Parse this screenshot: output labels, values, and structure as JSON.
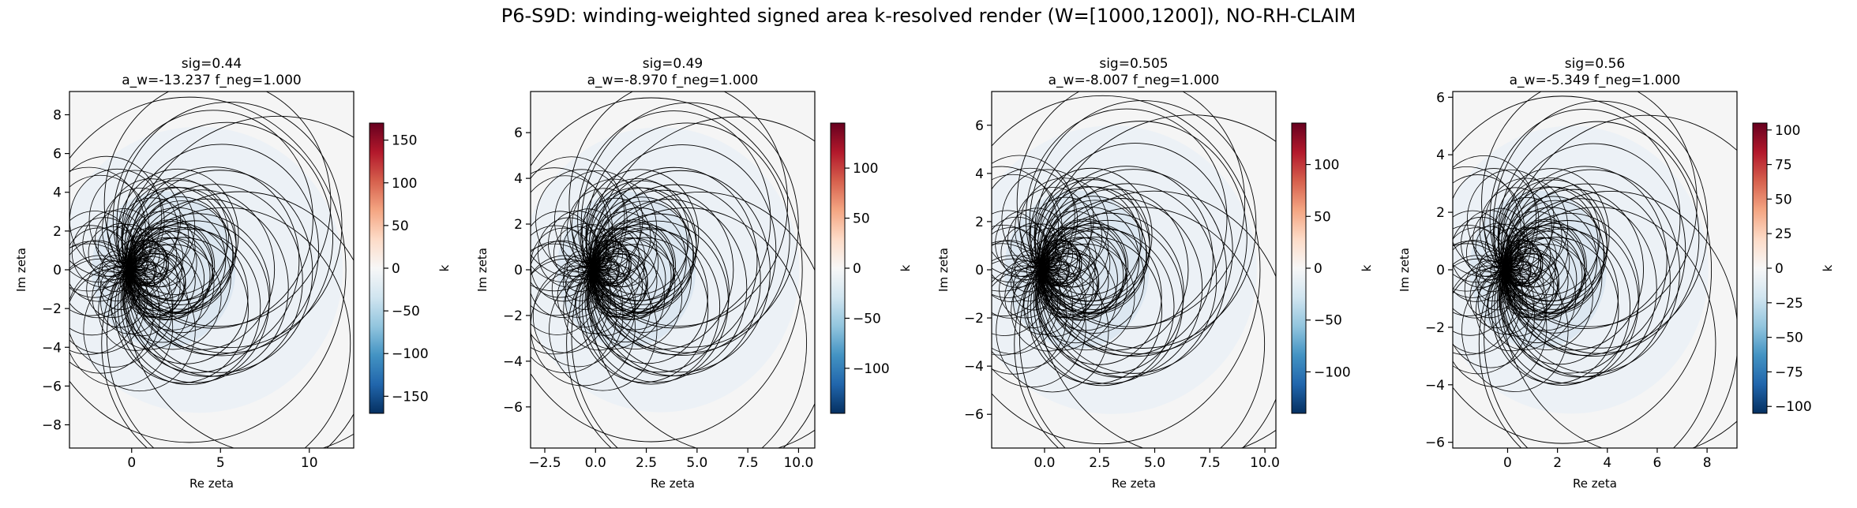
{
  "figure": {
    "title": "P6-S9D: winding-weighted signed area k-resolved render (W=[1000,1200]), NO-RH-CLAIM"
  },
  "colors": {
    "panel_background": "#f5f5f5",
    "curve": "#000000",
    "fill_tint": "#e3edf5",
    "colormap": [
      "#053061",
      "#2166ac",
      "#4393c3",
      "#92c5de",
      "#d1e5f0",
      "#f7f7f7",
      "#fddbc7",
      "#f4a582",
      "#d6604d",
      "#b2182b",
      "#67001f"
    ]
  },
  "chart_data": [
    {
      "type": "heatmap",
      "title": "sig=0.44",
      "subtitle": "a_w=-13.237 f_neg=1.000",
      "xlabel": "Re zeta",
      "ylabel": "Im zeta",
      "xlim": [
        -3.5,
        12.5
      ],
      "ylim": [
        -9.2,
        9.2
      ],
      "xticks": [
        {
          "v": 0,
          "label": "0"
        },
        {
          "v": 5,
          "label": "5"
        },
        {
          "v": 10,
          "label": "10"
        }
      ],
      "yticks": [
        {
          "v": -8,
          "label": "−8"
        },
        {
          "v": -6,
          "label": "−6"
        },
        {
          "v": -4,
          "label": "−4"
        },
        {
          "v": -2,
          "label": "−2"
        },
        {
          "v": 0,
          "label": "0"
        },
        {
          "v": 2,
          "label": "2"
        },
        {
          "v": 4,
          "label": "4"
        },
        {
          "v": 6,
          "label": "6"
        },
        {
          "v": 8,
          "label": "8"
        }
      ],
      "colorbar": {
        "label": "k",
        "range": [
          -170,
          170
        ],
        "ticks": [
          {
            "v": -150,
            "label": "−150"
          },
          {
            "v": -100,
            "label": "−100"
          },
          {
            "v": -50,
            "label": "−50"
          },
          {
            "v": 0,
            "label": "0"
          },
          {
            "v": 50,
            "label": "50"
          },
          {
            "v": 100,
            "label": "100"
          },
          {
            "v": 150,
            "label": "150"
          }
        ]
      },
      "curve_family": {
        "outer_radius": 9.0,
        "count": 44
      }
    },
    {
      "type": "heatmap",
      "title": "sig=0.49",
      "subtitle": "a_w=-8.970 f_neg=1.000",
      "xlabel": "Re zeta",
      "ylabel": "Im zeta",
      "xlim": [
        -3.2,
        10.8
      ],
      "ylim": [
        -7.8,
        7.8
      ],
      "xticks": [
        {
          "v": -2.5,
          "label": "−2.5"
        },
        {
          "v": 0,
          "label": "0.0"
        },
        {
          "v": 2.5,
          "label": "2.5"
        },
        {
          "v": 5,
          "label": "5.0"
        },
        {
          "v": 7.5,
          "label": "7.5"
        },
        {
          "v": 10,
          "label": "10.0"
        }
      ],
      "yticks": [
        {
          "v": -6,
          "label": "−6"
        },
        {
          "v": -4,
          "label": "−4"
        },
        {
          "v": -2,
          "label": "−2"
        },
        {
          "v": 0,
          "label": "0"
        },
        {
          "v": 2,
          "label": "2"
        },
        {
          "v": 4,
          "label": "4"
        },
        {
          "v": 6,
          "label": "6"
        }
      ],
      "colorbar": {
        "label": "k",
        "range": [
          -145,
          145
        ],
        "ticks": [
          {
            "v": -100,
            "label": "−100"
          },
          {
            "v": -50,
            "label": "−50"
          },
          {
            "v": 0,
            "label": "0"
          },
          {
            "v": 50,
            "label": "50"
          },
          {
            "v": 100,
            "label": "100"
          }
        ]
      },
      "curve_family": {
        "outer_radius": 7.6,
        "count": 44
      }
    },
    {
      "type": "heatmap",
      "title": "sig=0.505",
      "subtitle": "a_w=-8.007 f_neg=1.000",
      "xlabel": "Re zeta",
      "ylabel": "Im zeta",
      "xlim": [
        -2.4,
        10.5
      ],
      "ylim": [
        -7.4,
        7.4
      ],
      "xticks": [
        {
          "v": 0,
          "label": "0.0"
        },
        {
          "v": 2.5,
          "label": "2.5"
        },
        {
          "v": 5,
          "label": "5.0"
        },
        {
          "v": 7.5,
          "label": "7.5"
        },
        {
          "v": 10,
          "label": "10.0"
        }
      ],
      "yticks": [
        {
          "v": -6,
          "label": "−6"
        },
        {
          "v": -4,
          "label": "−4"
        },
        {
          "v": -2,
          "label": "−2"
        },
        {
          "v": 0,
          "label": "0"
        },
        {
          "v": 2,
          "label": "2"
        },
        {
          "v": 4,
          "label": "4"
        },
        {
          "v": 6,
          "label": "6"
        }
      ],
      "colorbar": {
        "label": "k",
        "range": [
          -140,
          140
        ],
        "ticks": [
          {
            "v": -100,
            "label": "−100"
          },
          {
            "v": -50,
            "label": "−50"
          },
          {
            "v": 0,
            "label": "0"
          },
          {
            "v": 50,
            "label": "50"
          },
          {
            "v": 100,
            "label": "100"
          }
        ]
      },
      "curve_family": {
        "outer_radius": 7.3,
        "count": 44
      }
    },
    {
      "type": "heatmap",
      "title": "sig=0.56",
      "subtitle": "a_w=-5.349 f_neg=1.000",
      "xlabel": "Re zeta",
      "ylabel": "Im zeta",
      "xlim": [
        -2.2,
        9.2
      ],
      "ylim": [
        -6.2,
        6.2
      ],
      "xticks": [
        {
          "v": 0,
          "label": "0"
        },
        {
          "v": 2,
          "label": "2"
        },
        {
          "v": 4,
          "label": "4"
        },
        {
          "v": 6,
          "label": "6"
        },
        {
          "v": 8,
          "label": "8"
        }
      ],
      "yticks": [
        {
          "v": -6,
          "label": "−6"
        },
        {
          "v": -4,
          "label": "−4"
        },
        {
          "v": -2,
          "label": "−2"
        },
        {
          "v": 0,
          "label": "0"
        },
        {
          "v": 2,
          "label": "2"
        },
        {
          "v": 4,
          "label": "4"
        },
        {
          "v": 6,
          "label": "6"
        }
      ],
      "colorbar": {
        "label": "k",
        "range": [
          -105,
          105
        ],
        "ticks": [
          {
            "v": -100,
            "label": "−100"
          },
          {
            "v": -75,
            "label": "−75"
          },
          {
            "v": -50,
            "label": "−50"
          },
          {
            "v": -25,
            "label": "−25"
          },
          {
            "v": 0,
            "label": "0"
          },
          {
            "v": 25,
            "label": "25"
          },
          {
            "v": 50,
            "label": "50"
          },
          {
            "v": 75,
            "label": "75"
          },
          {
            "v": 100,
            "label": "100"
          }
        ]
      },
      "curve_family": {
        "outer_radius": 6.1,
        "count": 44
      }
    }
  ]
}
